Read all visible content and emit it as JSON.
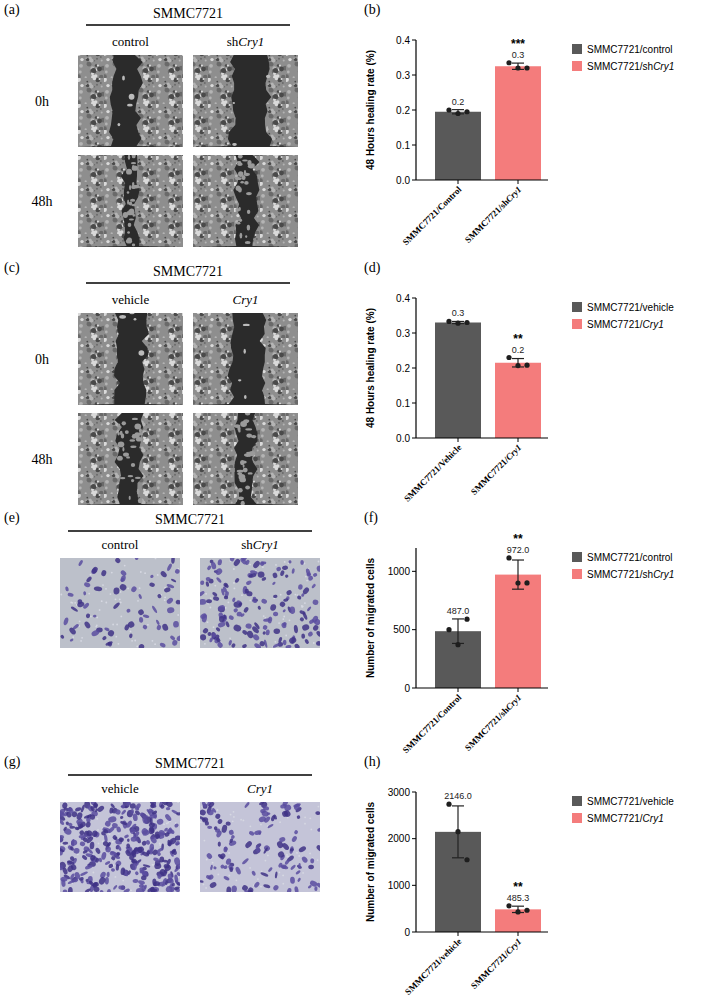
{
  "chart_data": [
    {
      "type": "bar",
      "title": "(b)",
      "ylabel": "48 Hours healing rate (%)",
      "categories": [
        "SMMC7721/Control",
        "SMMC7721/shCry1"
      ],
      "ylim": [
        0,
        0.4
      ],
      "yticks": [
        {
          "value": 0,
          "label": "0.0"
        },
        0.1,
        0.2,
        0.3,
        0.4
      ],
      "grid": false,
      "legend": "right",
      "data_labels": true,
      "series": [
        {
          "name": "SMMC7721/control",
          "color": "#595959",
          "values": [
            0.195,
            null
          ],
          "value_labels": [
            "0.2",
            null
          ],
          "errors": [
            0.006,
            null
          ],
          "points": [
            [
              0.2,
              0.19,
              0.195
            ],
            null
          ],
          "significance": [
            null,
            null
          ]
        },
        {
          "name": "SMMC7721/shCry1",
          "color": "#f47c7c",
          "values": [
            null,
            0.325
          ],
          "value_labels": [
            null,
            "0.3"
          ],
          "errors": [
            null,
            0.009
          ],
          "points": [
            null,
            [
              0.335,
              0.32,
              0.32
            ]
          ],
          "significance": [
            null,
            "***"
          ]
        }
      ]
    },
    {
      "type": "bar",
      "title": "(d)",
      "ylabel": "48 Hours healing rate (%)",
      "categories": [
        "SMMC7721/Vehicle",
        "SMMC7721/Cry1"
      ],
      "ylim": [
        0,
        0.4
      ],
      "yticks": [
        {
          "value": 0,
          "label": "0.0"
        },
        0.1,
        0.2,
        0.3,
        0.4
      ],
      "grid": false,
      "legend": "right",
      "data_labels": true,
      "series": [
        {
          "name": "SMMC7721/vehicle",
          "color": "#595959",
          "values": [
            0.33,
            null
          ],
          "value_labels": [
            "0.3",
            null
          ],
          "errors": [
            0.003,
            null
          ],
          "points": [
            [
              0.333,
              0.328,
              0.33
            ],
            null
          ],
          "significance": [
            null,
            null
          ]
        },
        {
          "name": "SMMC7721/Cry1",
          "color": "#f47c7c",
          "values": [
            null,
            0.215
          ],
          "value_labels": [
            null,
            "0.2"
          ],
          "errors": [
            null,
            0.012
          ],
          "points": [
            null,
            [
              0.23,
              0.207,
              0.208
            ]
          ],
          "significance": [
            null,
            "**"
          ]
        }
      ]
    },
    {
      "type": "bar",
      "title": "(f)",
      "ylabel": "Number of migrated cells",
      "categories": [
        "SMMC7721/Control",
        "SMMC7721/shCry1"
      ],
      "ylim": [
        0,
        1200
      ],
      "yticks": [
        0,
        500,
        1000
      ],
      "grid": false,
      "legend": "right",
      "data_labels": true,
      "series": [
        {
          "name": "SMMC7721/control",
          "color": "#595959",
          "values": [
            487,
            null
          ],
          "value_labels": [
            "487.0",
            null
          ],
          "errors": [
            105,
            null
          ],
          "points": [
            [
              500,
              371,
              590
            ],
            null
          ],
          "significance": [
            null,
            null
          ]
        },
        {
          "name": "SMMC7721/shCry1",
          "color": "#f47c7c",
          "values": [
            null,
            972
          ],
          "value_labels": [
            null,
            "972.0"
          ],
          "errors": [
            null,
            125
          ],
          "points": [
            null,
            [
              1115,
              900,
              901
            ]
          ],
          "significance": [
            null,
            "**"
          ]
        }
      ]
    },
    {
      "type": "bar",
      "title": "(h)",
      "ylabel": "Number of migrated cells",
      "categories": [
        "SMMC7721/vehicle",
        "SMMC7721/Cry1"
      ],
      "ylim": [
        0,
        3000
      ],
      "yticks": [
        0,
        1000,
        2000,
        3000
      ],
      "grid": false,
      "legend": "right",
      "data_labels": true,
      "series": [
        {
          "name": "SMMC7721/vehicle",
          "color": "#595959",
          "values": [
            2146,
            null
          ],
          "value_labels": [
            "2146.0",
            null
          ],
          "errors": [
            556,
            null
          ],
          "points": [
            [
              2740,
              2150,
              1548
            ],
            null
          ],
          "significance": [
            null,
            null
          ]
        },
        {
          "name": "SMMC7721/Cry1",
          "color": "#f47c7c",
          "values": [
            null,
            485.3
          ],
          "value_labels": [
            null,
            "485.3"
          ],
          "errors": [
            null,
            68
          ],
          "points": [
            null,
            [
              560,
              430,
              466
            ]
          ],
          "significance": [
            null,
            "**"
          ]
        }
      ]
    }
  ],
  "image_panels": [
    {
      "title": "(a)",
      "cell_line": "SMMC7721",
      "columns": [
        "control",
        "shCry1"
      ],
      "rows": [
        "0h",
        "48h"
      ]
    },
    {
      "title": "(c)",
      "cell_line": "SMMC7721",
      "columns": [
        "vehicle",
        "Cry1"
      ],
      "rows": [
        "0h",
        "48h"
      ]
    },
    {
      "title": "(e)",
      "cell_line": "SMMC7721",
      "columns": [
        "control",
        "shCry1"
      ]
    },
    {
      "title": "(g)",
      "cell_line": "SMMC7721",
      "columns": [
        "vehicle",
        "Cry1"
      ]
    }
  ]
}
